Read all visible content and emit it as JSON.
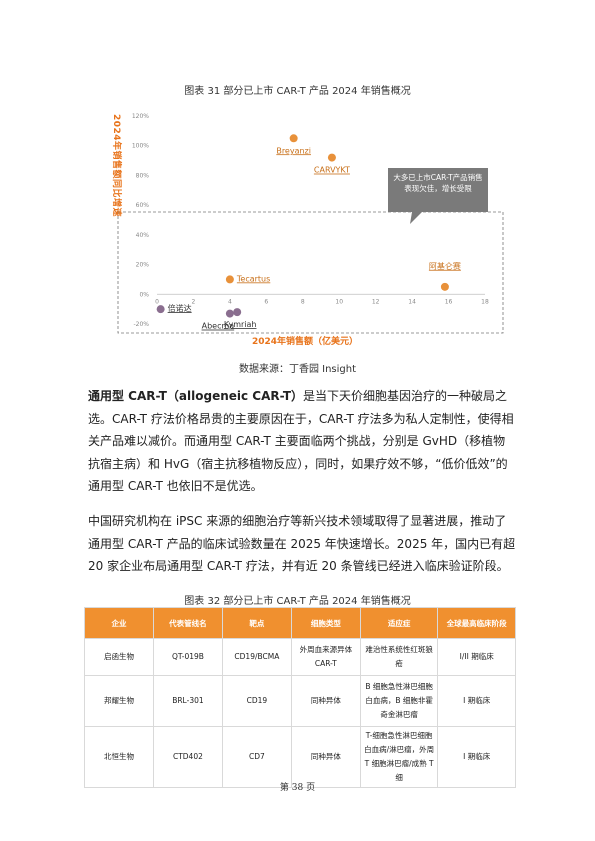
{
  "figure31": {
    "title": "图表 31 部分已上市 CAR-T 产品 2024 年销售概况",
    "source": "数据来源：丁香园 Insight"
  },
  "chart_data": {
    "type": "scatter",
    "xlabel": "2024年销售额（亿美元）",
    "ylabel": "2024年销售额同比增速",
    "xlim": [
      0,
      18
    ],
    "ylim": [
      -0.2,
      1.2
    ],
    "x_ticks": [
      "0",
      "2",
      "4",
      "6",
      "8",
      "10",
      "12",
      "14",
      "16",
      "18"
    ],
    "y_ticks": [
      "-20%",
      "0%",
      "20%",
      "40%",
      "60%",
      "80%",
      "100%",
      "120%"
    ],
    "grid": false,
    "colors": {
      "orange": "#e8913a",
      "purple": "#8a6e8f",
      "axis_label": "#e8731a"
    },
    "points": [
      {
        "name": "Breyanzi",
        "x": 7.5,
        "y": 1.05,
        "color": "#e8913a"
      },
      {
        "name": "CARVYKT",
        "x": 9.6,
        "y": 0.92,
        "color": "#e8913a"
      },
      {
        "name": "Tecartus",
        "x": 4.0,
        "y": 0.1,
        "color": "#e8913a"
      },
      {
        "name": "阿基仑赛",
        "x": 15.8,
        "y": 0.05,
        "color": "#e8913a"
      },
      {
        "name": "倍诺达",
        "x": 0.2,
        "y": -0.1,
        "color": "#8a6e8f"
      },
      {
        "name": "Abecma",
        "x": 4.0,
        "y": -0.13,
        "color": "#8a6e8f"
      },
      {
        "name": "Kymriah",
        "x": 4.4,
        "y": -0.12,
        "color": "#8a6e8f"
      }
    ],
    "annotation": "大多已上市CAR-T产品销售表现欠佳，增长受限"
  },
  "paragraph1": {
    "lead": "通用型 CAR-T（allogeneic CAR-T）",
    "text": "是当下天价细胞基因治疗的一种破局之选。CAR-T 疗法价格昂贵的主要原因在于，CAR-T 疗法多为私人定制性，使得相关产品难以减价。而通用型 CAR-T 主要面临两个挑战，分别是 GvHD（移植物抗宿主病）和 HvG（宿主抗移植物反应），同时，如果疗效不够，“低价低效”的通用型 CAR-T 也依旧不是优选。"
  },
  "paragraph2": "中国研究机构在 iPSC 来源的细胞治疗等新兴技术领域取得了显著进展，推动了通用型 CAR-T 产品的临床试验数量在 2025 年快速增长。2025 年，国内已有超 20 家企业布局通用型 CAR-T 疗法，并有近 20 条管线已经进入临床验证阶段。",
  "figure32": {
    "title": "图表 32 部分已上市 CAR-T 产品 2024 年销售概况",
    "headers": [
      "企业",
      "代表管线名",
      "靶点",
      "细胞类型",
      "适应症",
      "全球最高临床阶段"
    ],
    "rows": [
      [
        "启函生物",
        "QT-019B",
        "CD19/BCMA",
        "外周血来源异体 CAR-T",
        "难治性系统性红斑狼疮",
        "I/II 期临床"
      ],
      [
        "邦耀生物",
        "BRL-301",
        "CD19",
        "同种异体",
        "B 细胞急性淋巴细胞白血病，B 细胞非霍奇金淋巴瘤",
        "I 期临床"
      ],
      [
        "北恒生物",
        "CTD402",
        "CD7",
        "同种异体",
        "T-细胞急性淋巴细胞白血病/淋巴瘤，外周 T 细胞淋巴瘤/成熟 T 细",
        "I 期临床"
      ]
    ]
  },
  "page_number": "第 38 页"
}
